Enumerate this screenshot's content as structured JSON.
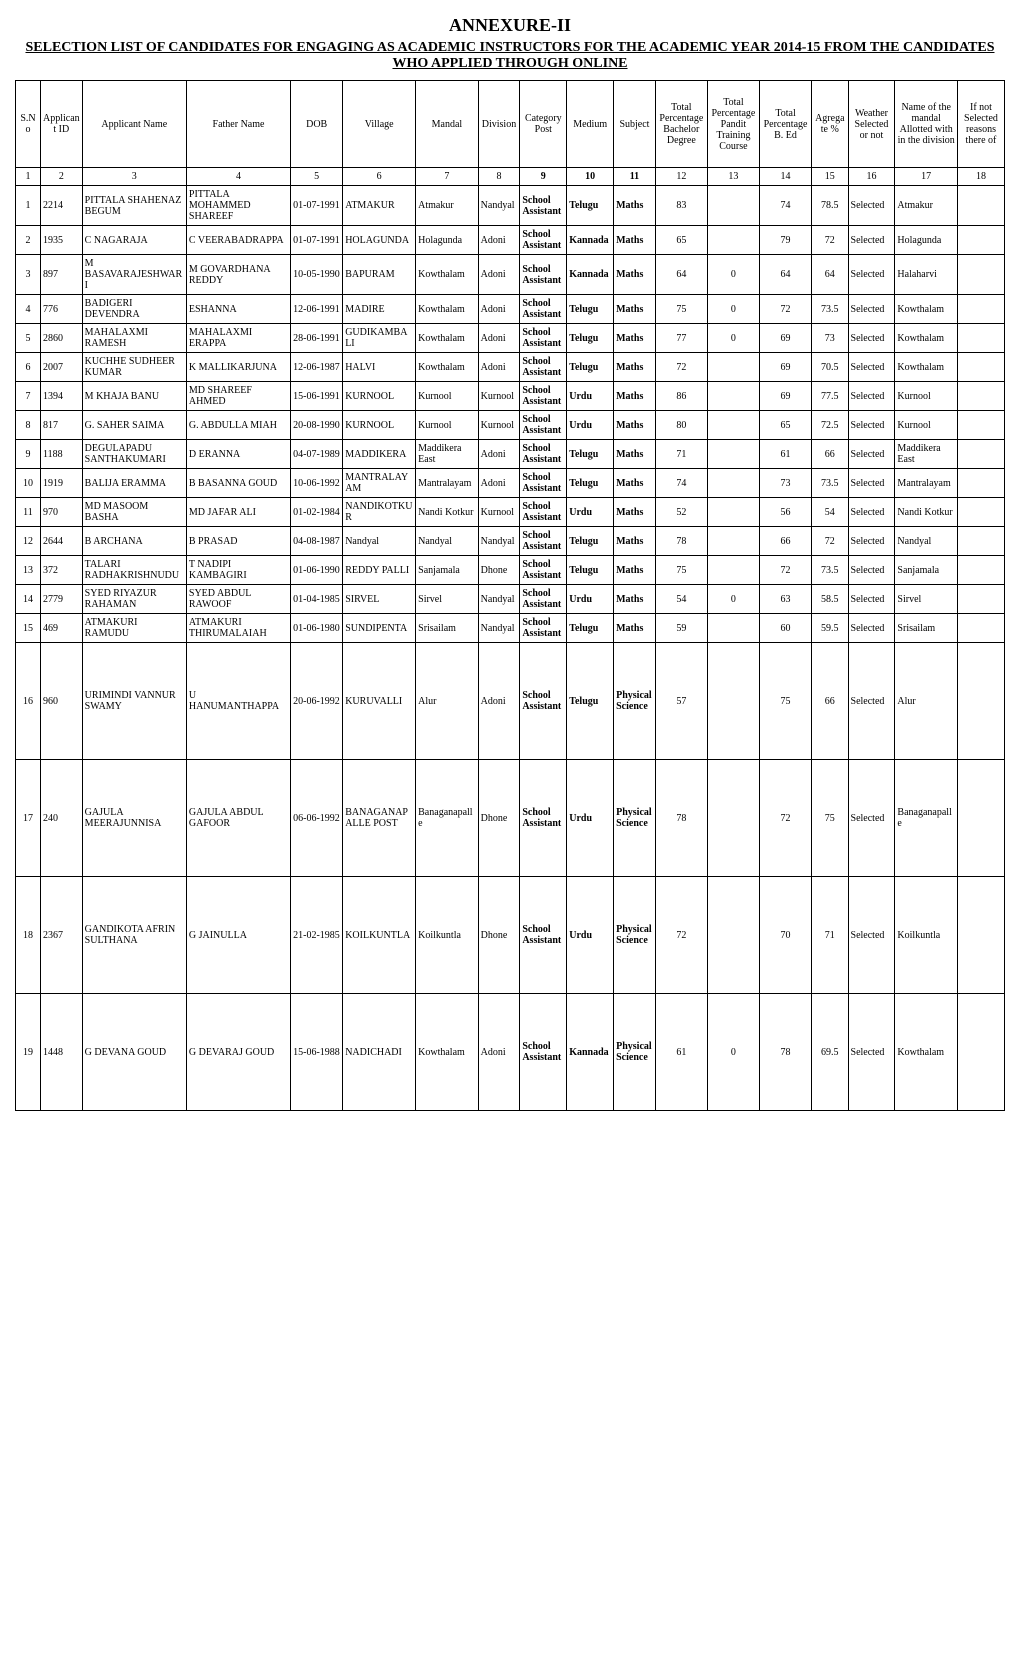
{
  "title": "ANNEXURE-II",
  "subtitle": "SELECTION LIST OF CANDIDATES FOR ENGAGING AS ACADEMIC INSTRUCTORS FOR THE ACADEMIC YEAR 2014-15 FROM THE CANDIDATES WHO APPLIED THROUGH ONLINE",
  "columns": [
    {
      "label": "S.No",
      "width": "2.4%"
    },
    {
      "label": "Applicant ID",
      "width": "4%"
    },
    {
      "label": "Applicant Name",
      "width": "10%"
    },
    {
      "label": "Father Name",
      "width": "10%"
    },
    {
      "label": "DOB",
      "width": "5%"
    },
    {
      "label": "Village",
      "width": "7%"
    },
    {
      "label": "Mandal",
      "width": "6%"
    },
    {
      "label": "Division",
      "width": "4%"
    },
    {
      "label": "Category Post",
      "width": "4.5%"
    },
    {
      "label": "Medium",
      "width": "4.5%"
    },
    {
      "label": "Subject",
      "width": "4%"
    },
    {
      "label": "Total Percentage Bachelor Degree",
      "width": "5%"
    },
    {
      "label": "Total Percentage Pandit Training Course",
      "width": "5%"
    },
    {
      "label": "Total Percentage B. Ed",
      "width": "5%"
    },
    {
      "label": "Agregate %",
      "width": "3.5%"
    },
    {
      "label": "Weather Selected or not",
      "width": "4.5%"
    },
    {
      "label": "Name of the mandal Allotted with in the division",
      "width": "6%"
    },
    {
      "label": "If not Selected reasons there of",
      "width": "4.5%"
    }
  ],
  "numrow": [
    "1",
    "2",
    "3",
    "4",
    "5",
    "6",
    "7",
    "8",
    "9",
    "10",
    "11",
    "12",
    "13",
    "14",
    "15",
    "16",
    "17",
    "18"
  ],
  "rows": [
    {
      "sno": "1",
      "id": "2214",
      "name": "PITTALA SHAHENAZ BEGUM",
      "father": "PITTALA MOHAMMED SHAREEF",
      "dob": "01-07-1991",
      "village": "ATMAKUR",
      "mandal": "Atmakur",
      "division": "Nandyal",
      "post": "School Assistant",
      "medium": "Telugu",
      "subject": "Maths",
      "bach": "83",
      "pandit": "",
      "bed": "74",
      "agg": "78.5",
      "sel": "Selected",
      "allot": "Atmakur",
      "reason": ""
    },
    {
      "sno": "2",
      "id": "1935",
      "name": "C NAGARAJA",
      "father": "C VEERABADRAPPA",
      "dob": "01-07-1991",
      "village": "HOLAGUNDA",
      "mandal": "Holagunda",
      "division": "Adoni",
      "post": "School Assistant",
      "medium": "Kannada",
      "subject": "Maths",
      "bach": "65",
      "pandit": "",
      "bed": "79",
      "agg": "72",
      "sel": "Selected",
      "allot": "Holagunda",
      "reason": ""
    },
    {
      "sno": "3",
      "id": "897",
      "name": "M BASAVARAJESHWARI",
      "father": "M GOVARDHANA REDDY",
      "dob": "10-05-1990",
      "village": "BAPURAM",
      "mandal": "Kowthalam",
      "division": "Adoni",
      "post": "School Assistant",
      "medium": "Kannada",
      "subject": "Maths",
      "bach": "64",
      "pandit": "0",
      "bed": "64",
      "agg": "64",
      "sel": "Selected",
      "allot": "Halaharvi",
      "reason": ""
    },
    {
      "sno": "4",
      "id": "776",
      "name": "BADIGERI DEVENDRA",
      "father": "ESHANNA",
      "dob": "12-06-1991",
      "village": "MADIRE",
      "mandal": "Kowthalam",
      "division": "Adoni",
      "post": "School Assistant",
      "medium": "Telugu",
      "subject": "Maths",
      "bach": "75",
      "pandit": "0",
      "bed": "72",
      "agg": "73.5",
      "sel": "Selected",
      "allot": "Kowthalam",
      "reason": ""
    },
    {
      "sno": "5",
      "id": "2860",
      "name": "MAHALAXMI RAMESH",
      "father": "MAHALAXMI ERAPPA",
      "dob": "28-06-1991",
      "village": "GUDIKAMBALI",
      "mandal": "Kowthalam",
      "division": "Adoni",
      "post": "School Assistant",
      "medium": "Telugu",
      "subject": "Maths",
      "bach": "77",
      "pandit": "0",
      "bed": "69",
      "agg": "73",
      "sel": "Selected",
      "allot": "Kowthalam",
      "reason": ""
    },
    {
      "sno": "6",
      "id": "2007",
      "name": "KUCHHE SUDHEER KUMAR",
      "father": "K MALLIKARJUNA",
      "dob": "12-06-1987",
      "village": "HALVI",
      "mandal": "Kowthalam",
      "division": "Adoni",
      "post": "School Assistant",
      "medium": "Telugu",
      "subject": "Maths",
      "bach": "72",
      "pandit": "",
      "bed": "69",
      "agg": "70.5",
      "sel": "Selected",
      "allot": "Kowthalam",
      "reason": ""
    },
    {
      "sno": "7",
      "id": "1394",
      "name": "M KHAJA BANU",
      "father": "MD SHAREEF AHMED",
      "dob": "15-06-1991",
      "village": "KURNOOL",
      "mandal": "Kurnool",
      "division": "Kurnool",
      "post": "School Assistant",
      "medium": "Urdu",
      "subject": "Maths",
      "bach": "86",
      "pandit": "",
      "bed": "69",
      "agg": "77.5",
      "sel": "Selected",
      "allot": "Kurnool",
      "reason": ""
    },
    {
      "sno": "8",
      "id": "817",
      "name": "G. SAHER SAIMA",
      "father": "G. ABDULLA MIAH",
      "dob": "20-08-1990",
      "village": "KURNOOL",
      "mandal": "Kurnool",
      "division": "Kurnool",
      "post": "School Assistant",
      "medium": "Urdu",
      "subject": "Maths",
      "bach": "80",
      "pandit": "",
      "bed": "65",
      "agg": "72.5",
      "sel": "Selected",
      "allot": "Kurnool",
      "reason": ""
    },
    {
      "sno": "9",
      "id": "1188",
      "name": "DEGULAPADU SANTHAKUMARI",
      "father": "D ERANNA",
      "dob": "04-07-1989",
      "village": "MADDIKERA",
      "mandal": "Maddikera East",
      "division": "Adoni",
      "post": "School Assistant",
      "medium": "Telugu",
      "subject": "Maths",
      "bach": "71",
      "pandit": "",
      "bed": "61",
      "agg": "66",
      "sel": "Selected",
      "allot": "Maddikera East",
      "reason": ""
    },
    {
      "sno": "10",
      "id": "1919",
      "name": "BALIJA ERAMMA",
      "father": "B BASANNA GOUD",
      "dob": "10-06-1992",
      "village": "MANTRALAYAM",
      "mandal": "Mantralayam",
      "division": "Adoni",
      "post": "School Assistant",
      "medium": "Telugu",
      "subject": "Maths",
      "bach": "74",
      "pandit": "",
      "bed": "73",
      "agg": "73.5",
      "sel": "Selected",
      "allot": "Mantralayam",
      "reason": ""
    },
    {
      "sno": "11",
      "id": "970",
      "name": "MD MASOOM BASHA",
      "father": "MD JAFAR ALI",
      "dob": "01-02-1984",
      "village": "NANDIKOTKUR",
      "mandal": "Nandi Kotkur",
      "division": "Kurnool",
      "post": "School Assistant",
      "medium": "Urdu",
      "subject": "Maths",
      "bach": "52",
      "pandit": "",
      "bed": "56",
      "agg": "54",
      "sel": "Selected",
      "allot": "Nandi Kotkur",
      "reason": ""
    },
    {
      "sno": "12",
      "id": "2644",
      "name": "B ARCHANA",
      "father": "B PRASAD",
      "dob": "04-08-1987",
      "village": "Nandyal",
      "mandal": "Nandyal",
      "division": "Nandyal",
      "post": "School Assistant",
      "medium": "Telugu",
      "subject": "Maths",
      "bach": "78",
      "pandit": "",
      "bed": "66",
      "agg": "72",
      "sel": "Selected",
      "allot": "Nandyal",
      "reason": ""
    },
    {
      "sno": "13",
      "id": "372",
      "name": "TALARI RADHAKRISHNUDU",
      "father": "T NADIPI KAMBAGIRI",
      "dob": "01-06-1990",
      "village": "REDDY PALLI",
      "mandal": "Sanjamala",
      "division": "Dhone",
      "post": "School Assistant",
      "medium": "Telugu",
      "subject": "Maths",
      "bach": "75",
      "pandit": "",
      "bed": "72",
      "agg": "73.5",
      "sel": "Selected",
      "allot": "Sanjamala",
      "reason": ""
    },
    {
      "sno": "14",
      "id": "2779",
      "name": "SYED RIYAZUR RAHAMAN",
      "father": "SYED ABDUL RAWOOF",
      "dob": "01-04-1985",
      "village": "SIRVEL",
      "mandal": "Sirvel",
      "division": "Nandyal",
      "post": "School Assistant",
      "medium": "Urdu",
      "subject": "Maths",
      "bach": "54",
      "pandit": "0",
      "bed": "63",
      "agg": "58.5",
      "sel": "Selected",
      "allot": "Sirvel",
      "reason": ""
    },
    {
      "sno": "15",
      "id": "469",
      "name": "ATMAKURI RAMUDU",
      "father": "ATMAKURI THIRUMALAIAH",
      "dob": "01-06-1980",
      "village": "SUNDIPENTA",
      "mandal": "Srisailam",
      "division": "Nandyal",
      "post": "School Assistant",
      "medium": "Telugu",
      "subject": "Maths",
      "bach": "59",
      "pandit": "",
      "bed": "60",
      "agg": "59.5",
      "sel": "Selected",
      "allot": "Srisailam",
      "reason": ""
    },
    {
      "sno": "16",
      "id": "960",
      "name": "URIMINDI VANNUR SWAMY",
      "father": "U HANUMANTHAPPA",
      "dob": "20-06-1992",
      "village": "KURUVALLI",
      "mandal": "Alur",
      "division": "Adoni",
      "post": "School Assistant",
      "medium": "Telugu",
      "subject": "Physical Science",
      "bach": "57",
      "pandit": "",
      "bed": "75",
      "agg": "66",
      "sel": "Selected",
      "allot": "Alur",
      "reason": "",
      "tall": true
    },
    {
      "sno": "17",
      "id": "240",
      "name": "GAJULA MEERAJUNNISA",
      "father": "GAJULA ABDUL GAFOOR",
      "dob": "06-06-1992",
      "village": "BANAGANAPALLE POST",
      "mandal": "Banaganapalle",
      "division": "Dhone",
      "post": "School Assistant",
      "medium": "Urdu",
      "subject": "Physical Science",
      "bach": "78",
      "pandit": "",
      "bed": "72",
      "agg": "75",
      "sel": "Selected",
      "allot": "Banaganapalle",
      "reason": "",
      "tall": true
    },
    {
      "sno": "18",
      "id": "2367",
      "name": "GANDIKOTA AFRIN SULTHANA",
      "father": "G JAINULLA",
      "dob": "21-02-1985",
      "village": "KOILKUNTLA",
      "mandal": "Koilkuntla",
      "division": "Dhone",
      "post": "School Assistant",
      "medium": "Urdu",
      "subject": "Physical Science",
      "bach": "72",
      "pandit": "",
      "bed": "70",
      "agg": "71",
      "sel": "Selected",
      "allot": "Koilkuntla",
      "reason": "",
      "tall": true
    },
    {
      "sno": "19",
      "id": "1448",
      "name": "G DEVANA GOUD",
      "father": "G DEVARAJ GOUD",
      "dob": "15-06-1988",
      "village": "NADICHADI",
      "mandal": "Kowthalam",
      "division": "Adoni",
      "post": "School Assistant",
      "medium": "Kannada",
      "subject": "Physical Science",
      "bach": "61",
      "pandit": "0",
      "bed": "78",
      "agg": "69.5",
      "sel": "Selected",
      "allot": "Kowthalam",
      "reason": "",
      "tall": true
    }
  ]
}
